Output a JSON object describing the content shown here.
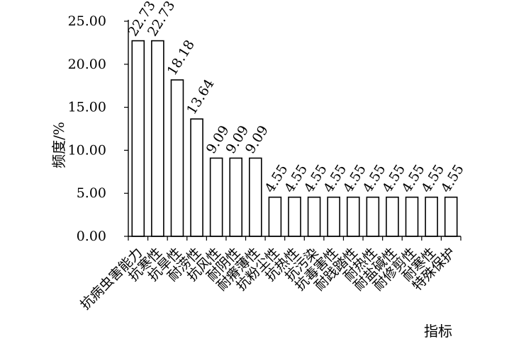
{
  "chart_data": {
    "type": "bar",
    "ylabel": "频度/%",
    "xlabel": "指标",
    "ylim": [
      0,
      25
    ],
    "yticks": [
      "0.00",
      "5.00",
      "10.00",
      "15.00",
      "20.00",
      "25.00"
    ],
    "categories": [
      "抗病虫害能力",
      "抗寒性",
      "抗旱性",
      "耐涝性",
      "抗风性",
      "耐阴性",
      "耐瘠薄性",
      "抗粉尘性",
      "抗热性",
      "抗污染",
      "抗毒害性",
      "耐践踏性",
      "耐热性",
      "耐盐碱性",
      "耐修剪性",
      "耐寒性",
      "特殊保护"
    ],
    "values": [
      22.73,
      22.73,
      18.18,
      13.64,
      9.09,
      9.09,
      9.09,
      4.55,
      4.55,
      4.55,
      4.55,
      4.55,
      4.55,
      4.55,
      4.55,
      4.55,
      4.55
    ],
    "data_labels": [
      "22.73",
      "22.73",
      "18.18",
      "13.64",
      "9.09",
      "9.09",
      "9.09",
      "4.55",
      "4.55",
      "4.55",
      "4.55",
      "4.55",
      "4.55",
      "4.55",
      "4.55",
      "4.55",
      "4.55"
    ],
    "grid": false,
    "legend": "none"
  }
}
